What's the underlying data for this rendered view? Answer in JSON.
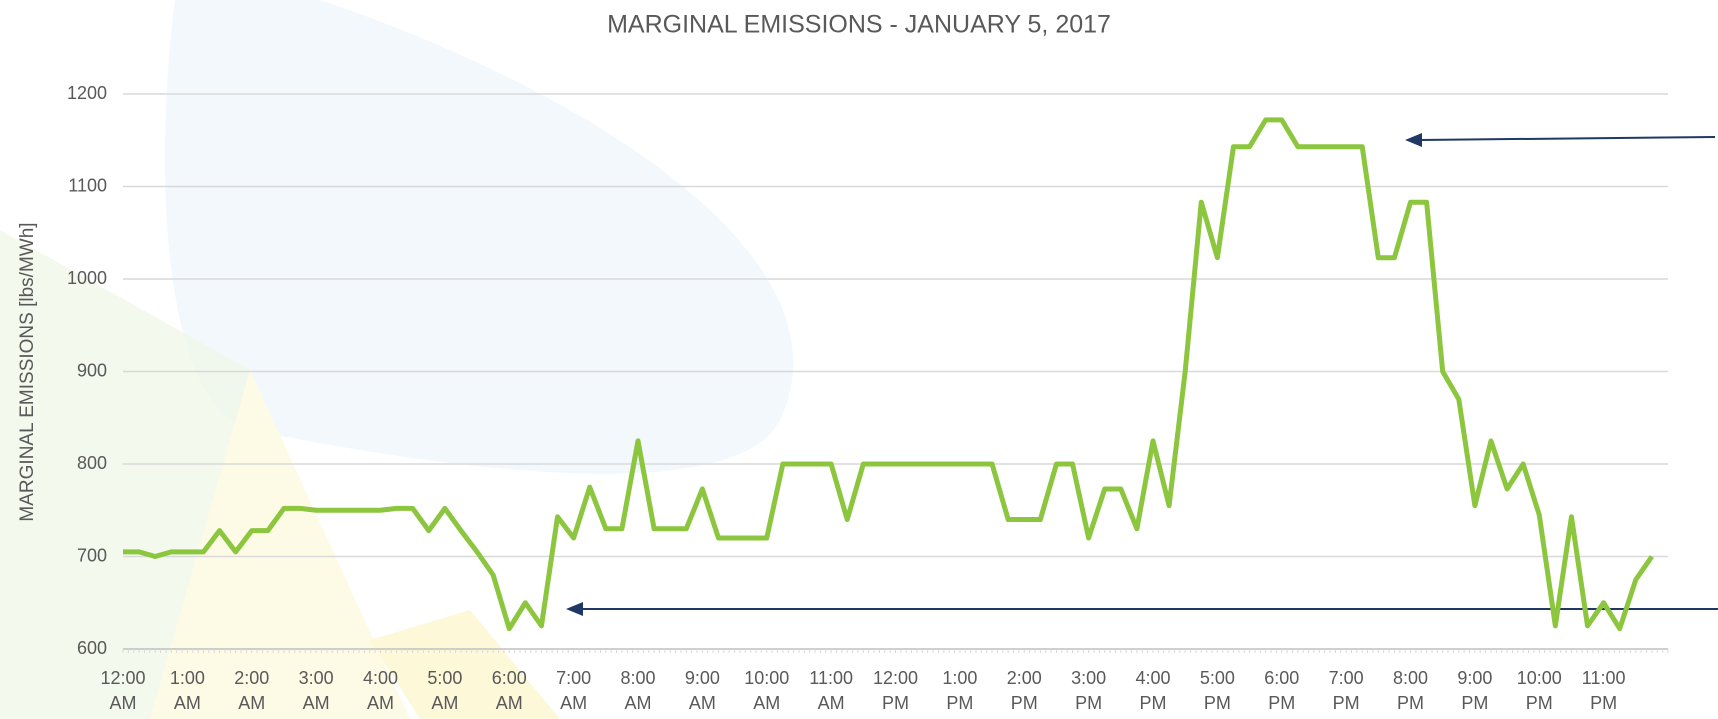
{
  "chart_data": {
    "type": "line",
    "title": "MARGINAL EMISSIONS - JANUARY 5, 2017",
    "y_label": "MARGINAL EMISSIONS [lbs/MWh]",
    "categories": [
      "12:00 AM",
      null,
      null,
      null,
      "1:00 AM",
      null,
      null,
      null,
      "2:00 AM",
      null,
      null,
      null,
      "3:00 AM",
      null,
      null,
      null,
      "4:00 AM",
      null,
      null,
      null,
      "5:00 AM",
      null,
      null,
      null,
      "6:00 AM",
      null,
      null,
      null,
      "7:00 AM",
      null,
      null,
      null,
      "8:00 AM",
      null,
      null,
      null,
      "9:00 AM",
      null,
      null,
      null,
      "10:00 AM",
      null,
      null,
      null,
      "11:00 AM",
      null,
      null,
      null,
      "12:00 PM",
      null,
      null,
      null,
      "1:00 PM",
      null,
      null,
      null,
      "2:00 PM",
      null,
      null,
      null,
      "3:00 PM",
      null,
      null,
      null,
      "4:00 PM",
      null,
      null,
      null,
      "5:00 PM",
      null,
      null,
      null,
      "6:00 PM",
      null,
      null,
      null,
      "7:00 PM",
      null,
      null,
      null,
      "8:00 PM",
      null,
      null,
      null,
      "9:00 PM",
      null,
      null,
      null,
      "10:00 PM",
      null,
      null,
      null,
      "11:00 PM",
      null,
      null,
      null
    ],
    "series": [
      {
        "name": "Marginal Emissions",
        "color": "#8cc63f",
        "values": [
          705,
          705,
          700,
          705,
          705,
          705,
          728,
          705,
          728,
          728,
          752,
          752,
          750,
          750,
          750,
          750,
          750,
          752,
          752,
          728,
          752,
          728,
          705,
          680,
          622,
          650,
          625,
          743,
          720,
          775,
          730,
          730,
          825,
          730,
          730,
          730,
          773,
          720,
          720,
          720,
          720,
          800,
          800,
          800,
          800,
          740,
          800,
          800,
          800,
          800,
          800,
          800,
          800,
          800,
          800,
          740,
          740,
          740,
          800,
          800,
          720,
          773,
          773,
          730,
          825,
          755,
          900,
          1083,
          1023,
          1143,
          1143,
          1172,
          1172,
          1143,
          1143,
          1143,
          1143,
          1143,
          1023,
          1023,
          1083,
          1083,
          900,
          870,
          755,
          825,
          773,
          800,
          745,
          625,
          743,
          625,
          650,
          622,
          675,
          700
        ]
      }
    ],
    "ylim": [
      600,
      1200
    ],
    "yticks": [
      600,
      700,
      800,
      900,
      1000,
      1100,
      1200
    ],
    "grid": true
  }
}
